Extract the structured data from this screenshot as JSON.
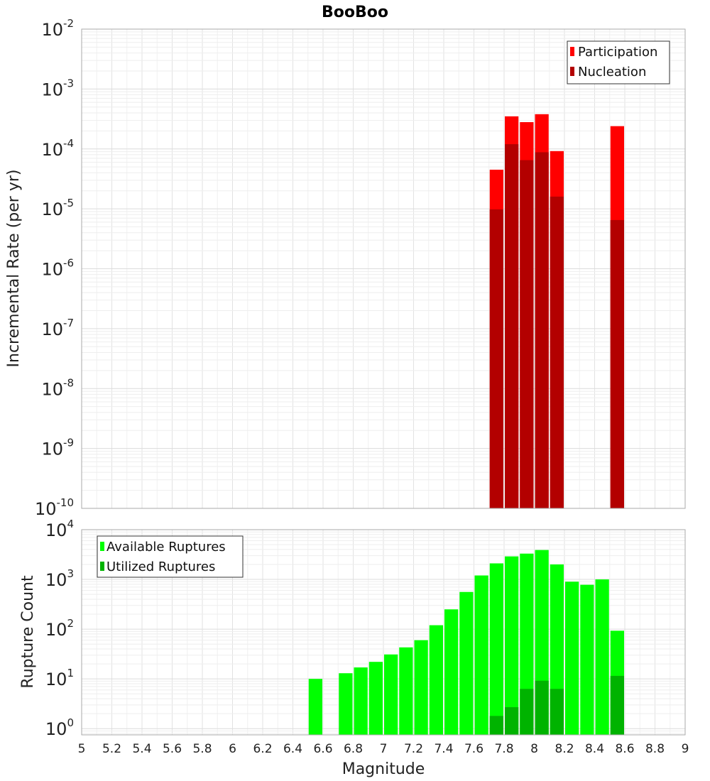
{
  "chart_data": [
    {
      "type": "bar",
      "title": "BooBoo",
      "xlabel": "Magnitude",
      "ylabel": "Incremental Rate (per yr)",
      "yscale": "log",
      "xlim": [
        5,
        9
      ],
      "ylim": [
        1e-10,
        0.01
      ],
      "bar_width": 0.1,
      "legend_position": "top-right",
      "series": [
        {
          "name": "Participation",
          "color": "#ff0000",
          "x": [
            7.75,
            7.85,
            7.95,
            8.05,
            8.15,
            8.55
          ],
          "values": [
            4.5e-05,
            0.00035,
            0.00028,
            0.00038,
            9.2e-05,
            0.00024
          ]
        },
        {
          "name": "Nucleation",
          "color": "#b30000",
          "x": [
            7.75,
            7.85,
            7.95,
            8.05,
            8.15,
            8.55
          ],
          "values": [
            9.8e-06,
            0.00012,
            6.5e-05,
            8.8e-05,
            1.6e-05,
            6.5e-06
          ]
        }
      ],
      "ytick_labels": [
        {
          "base": "10",
          "exp": "-10"
        },
        {
          "base": "10",
          "exp": "-9"
        },
        {
          "base": "10",
          "exp": "-8"
        },
        {
          "base": "10",
          "exp": "-7"
        },
        {
          "base": "10",
          "exp": "-6"
        },
        {
          "base": "10",
          "exp": "-5"
        },
        {
          "base": "10",
          "exp": "-4"
        },
        {
          "base": "10",
          "exp": "-3"
        },
        {
          "base": "10",
          "exp": "-2"
        }
      ]
    },
    {
      "type": "bar",
      "title": "",
      "xlabel": "Magnitude",
      "ylabel": "Rupture Count",
      "yscale": "log",
      "xlim": [
        5,
        9
      ],
      "ylim": [
        0.75,
        10000
      ],
      "bar_width": 0.1,
      "legend_position": "top-left",
      "series": [
        {
          "name": "Available Ruptures",
          "color": "#00ff00",
          "x": [
            6.55,
            6.75,
            6.85,
            6.95,
            7.05,
            7.15,
            7.25,
            7.35,
            7.45,
            7.55,
            7.65,
            7.75,
            7.85,
            7.95,
            8.05,
            8.15,
            8.25,
            8.35,
            8.45,
            8.55
          ],
          "values": [
            10,
            13,
            17,
            22,
            31,
            43,
            60,
            120,
            250,
            560,
            1200,
            2100,
            2900,
            3300,
            3900,
            2000,
            900,
            780,
            1000,
            93
          ]
        },
        {
          "name": "Utilized Ruptures",
          "color": "#00b300",
          "x": [
            7.75,
            7.85,
            7.95,
            8.05,
            8.15,
            8.55
          ],
          "values": [
            1.8,
            2.7,
            6.3,
            9.2,
            6.3,
            11.5
          ]
        }
      ],
      "ytick_labels": [
        {
          "base": "10",
          "exp": "0"
        },
        {
          "base": "10",
          "exp": "1"
        },
        {
          "base": "10",
          "exp": "2"
        },
        {
          "base": "10",
          "exp": "3"
        },
        {
          "base": "10",
          "exp": "4"
        }
      ],
      "xtick_labels": [
        "5",
        "5.2",
        "5.4",
        "5.6",
        "5.8",
        "6",
        "6.2",
        "6.4",
        "6.6",
        "6.8",
        "7",
        "7.2",
        "7.4",
        "7.6",
        "7.8",
        "8",
        "8.2",
        "8.4",
        "8.6",
        "8.8",
        "9"
      ]
    }
  ]
}
